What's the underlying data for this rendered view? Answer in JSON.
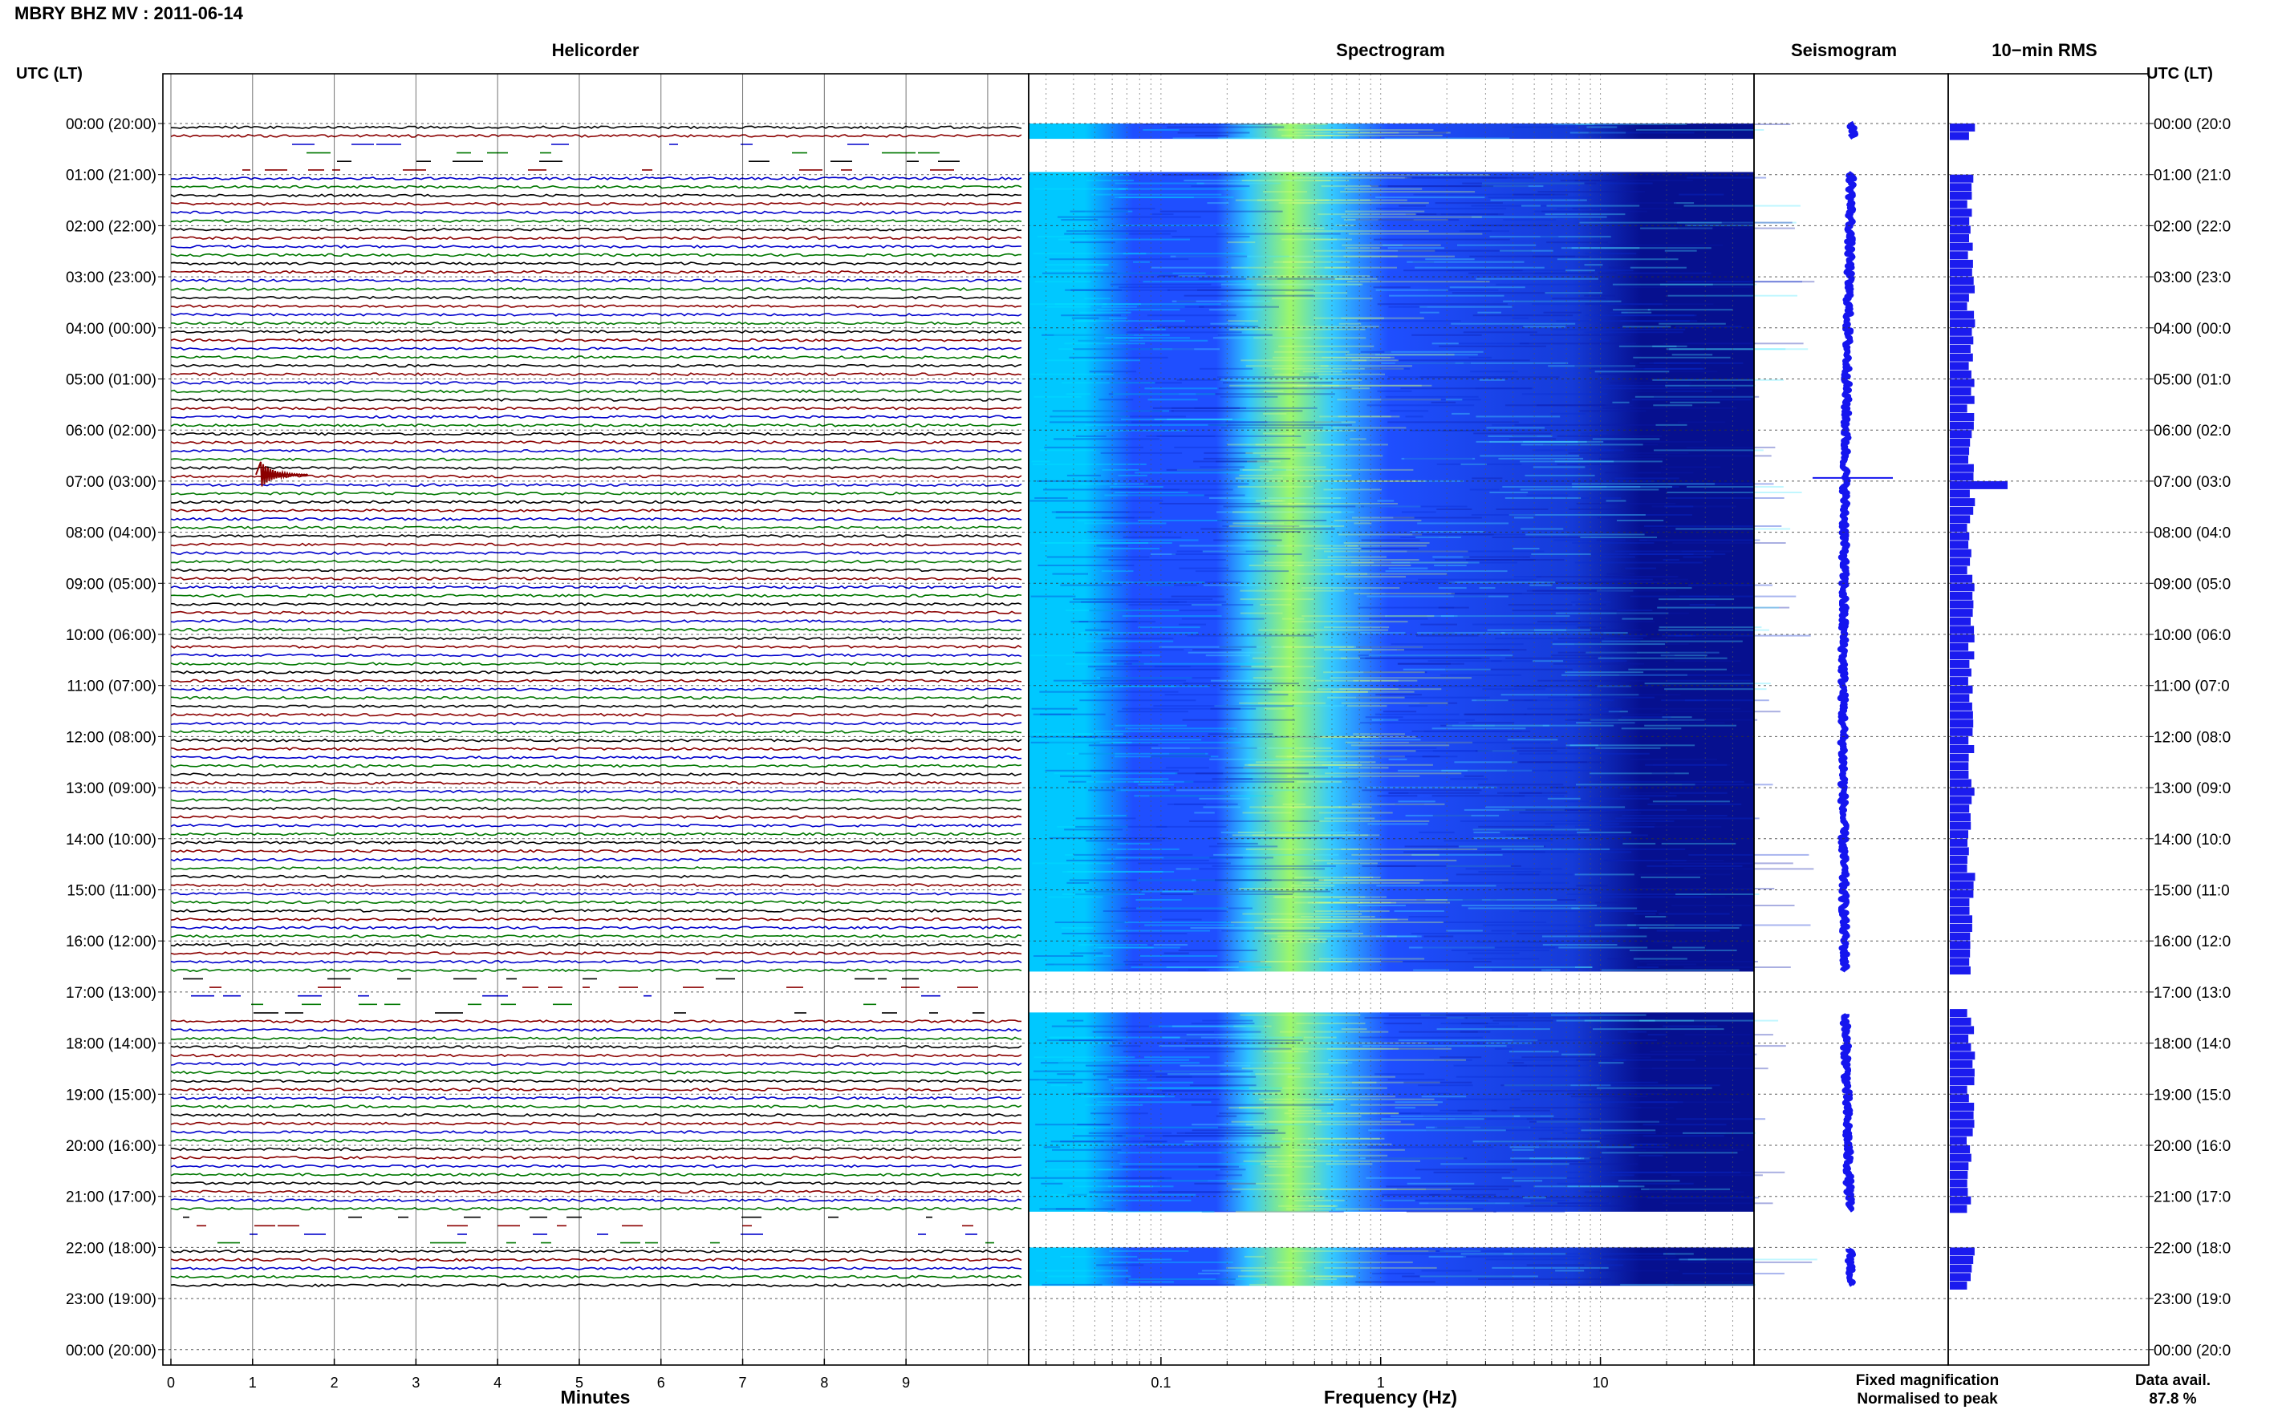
{
  "title": "MBRY BHZ MV : 2011-06-14",
  "colors": {
    "trace": [
      "#000000",
      "#8b0000",
      "#0000cc",
      "#007700"
    ],
    "spec_low": "#00c8ff",
    "spec_mid": "#1f4fff",
    "spec_peak": "#9cf76a",
    "spec_high": "#06108f",
    "seismo": "#1515ee",
    "rms": "#1b1bee",
    "fixed": "#0000ff",
    "normalised": "#ff0000"
  },
  "chart_data": {
    "type": "multi-panel seismic summary",
    "panel_titles": {
      "helicorder": "Helicorder",
      "spectrogram": "Spectrogram",
      "seismogram": "Seismogram",
      "rms": "10−min RMS"
    },
    "left_axis_label": "UTC (LT)",
    "right_axis_label": "UTC (LT)",
    "hour_labels": [
      "00:00 (20:00)",
      "01:00 (21:00)",
      "02:00 (22:00)",
      "03:00 (23:00)",
      "04:00 (00:00)",
      "05:00 (01:00)",
      "06:00 (02:00)",
      "07:00 (03:00)",
      "08:00 (04:00)",
      "09:00 (05:00)",
      "10:00 (06:00)",
      "11:00 (07:00)",
      "12:00 (08:00)",
      "13:00 (09:00)",
      "14:00 (10:00)",
      "15:00 (11:00)",
      "16:00 (12:00)",
      "17:00 (13:00)",
      "18:00 (14:00)",
      "19:00 (15:00)",
      "20:00 (16:00)",
      "21:00 (17:00)",
      "22:00 (18:00)",
      "23:00 (19:00)",
      "00:00 (20:00)"
    ],
    "right_hour_labels": [
      "00:00 (20:0",
      "01:00 (21:0",
      "02:00 (22:0",
      "03:00 (23:0",
      "04:00 (00:0",
      "05:00 (01:0",
      "06:00 (02:0",
      "07:00 (03:0",
      "08:00 (04:0",
      "09:00 (05:0",
      "10:00 (06:0",
      "11:00 (07:0",
      "12:00 (08:0",
      "13:00 (09:0",
      "14:00 (10:0",
      "15:00 (11:0",
      "16:00 (12:0",
      "17:00 (13:0",
      "18:00 (14:0",
      "19:00 (15:0",
      "20:00 (16:0",
      "21:00 (17:0",
      "22:00 (18:0",
      "23:00 (19:0",
      "00:00 (20:0"
    ],
    "helicorder": {
      "x_label": "Minutes",
      "x_ticks": [
        "0",
        "1",
        "2",
        "3",
        "4",
        "5",
        "6",
        "7",
        "8",
        "9"
      ],
      "x_range_minutes": [
        0,
        10
      ],
      "lines_per_hour": 6,
      "event": {
        "hour": 7,
        "minute": 1.1
      },
      "gaps_hours": [
        [
          0.3,
          0.95
        ],
        [
          16.6,
          17.4
        ],
        [
          21.3,
          22.0
        ]
      ],
      "data_end_hour": 22.75
    },
    "spectrogram": {
      "x_label": "Frequency (Hz)",
      "x_ticks": [
        "0.1",
        "1",
        "10"
      ],
      "x_scale": "log",
      "freq_range_hz": [
        0.025,
        50
      ],
      "peak_band_hz": [
        0.25,
        0.6
      ]
    },
    "seismogram": {
      "legend": [
        "Fixed magnification",
        "Normalised to peak"
      ]
    },
    "rms": {
      "spike_hour": 7.0,
      "baseline_level": 1,
      "spike_level": 2.4
    },
    "data_availability_label": "Data avail.",
    "data_availability": "87.8 %"
  }
}
